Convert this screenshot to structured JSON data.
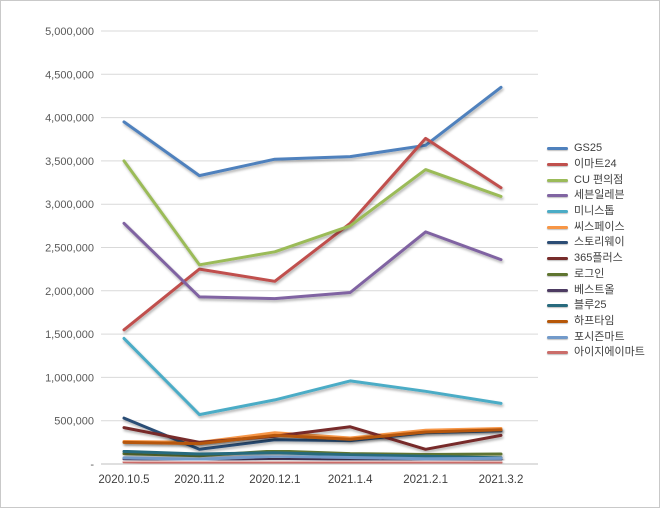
{
  "chart_data": {
    "type": "line",
    "title": "",
    "xlabel": "",
    "ylabel": "",
    "categories": [
      "2020.10.5",
      "2020.11.2",
      "2020.12.1",
      "2021.1.4",
      "2021.2.1",
      "2021.3.2"
    ],
    "series": [
      {
        "name": "GS25",
        "color": "#4F81BD",
        "values": [
          3950000,
          3330000,
          3520000,
          3550000,
          3680000,
          4350000
        ]
      },
      {
        "name": "이마트24",
        "color": "#C0504D",
        "values": [
          1550000,
          2250000,
          2110000,
          2780000,
          3760000,
          3190000
        ]
      },
      {
        "name": "CU 편의점",
        "color": "#9BBB59",
        "values": [
          3500000,
          2300000,
          2450000,
          2750000,
          3400000,
          3090000
        ]
      },
      {
        "name": "세븐일레븐",
        "color": "#8064A2",
        "values": [
          2780000,
          1930000,
          1910000,
          1980000,
          2680000,
          2360000
        ]
      },
      {
        "name": "미니스톱",
        "color": "#4BACC6",
        "values": [
          1450000,
          570000,
          740000,
          960000,
          840000,
          700000
        ]
      },
      {
        "name": "씨스페이스",
        "color": "#F79646",
        "values": [
          260000,
          250000,
          360000,
          300000,
          390000,
          410000
        ]
      },
      {
        "name": "스토리웨이",
        "color": "#2C4D75",
        "values": [
          530000,
          170000,
          280000,
          270000,
          360000,
          385000
        ]
      },
      {
        "name": "365플러스",
        "color": "#772C2A",
        "values": [
          420000,
          250000,
          320000,
          430000,
          170000,
          330000
        ]
      },
      {
        "name": "로그인",
        "color": "#5F7530",
        "values": [
          120000,
          95000,
          150000,
          120000,
          110000,
          115000
        ]
      },
      {
        "name": "베스트올",
        "color": "#4D3B62",
        "values": [
          60000,
          50000,
          65000,
          55000,
          50000,
          55000
        ]
      },
      {
        "name": "블루25",
        "color": "#276A7D",
        "values": [
          145000,
          115000,
          130000,
          105000,
          90000,
          70000
        ]
      },
      {
        "name": "하프타임",
        "color": "#B65708",
        "values": [
          250000,
          235000,
          330000,
          285000,
          370000,
          395000
        ]
      },
      {
        "name": "포시즌마트",
        "color": "#729ACA",
        "values": [
          70000,
          55000,
          90000,
          75000,
          60000,
          65000
        ]
      },
      {
        "name": "아이지에이마트",
        "color": "#CB6D6A",
        "values": [
          25000,
          15000,
          20000,
          15000,
          12000,
          18000
        ]
      }
    ],
    "y_axis": {
      "min": 0,
      "max": 5000000,
      "step": 500000,
      "tick_labels_top_to_bottom": [
        "5,000,000",
        "4,500,000",
        "4,000,000",
        "3,500,000",
        "3,000,000",
        "2,500,000",
        "2,000,000",
        "1,500,000",
        "1,000,000",
        "500,000",
        "-"
      ]
    },
    "grid": true,
    "legend_position": "right",
    "colors": {
      "gridline": "#d9d9d9",
      "axis_line": "#bfbfbf",
      "tick_text": "#595959",
      "category_text": "#404040",
      "background": "#ffffff",
      "border": "#c9c9c9"
    }
  }
}
